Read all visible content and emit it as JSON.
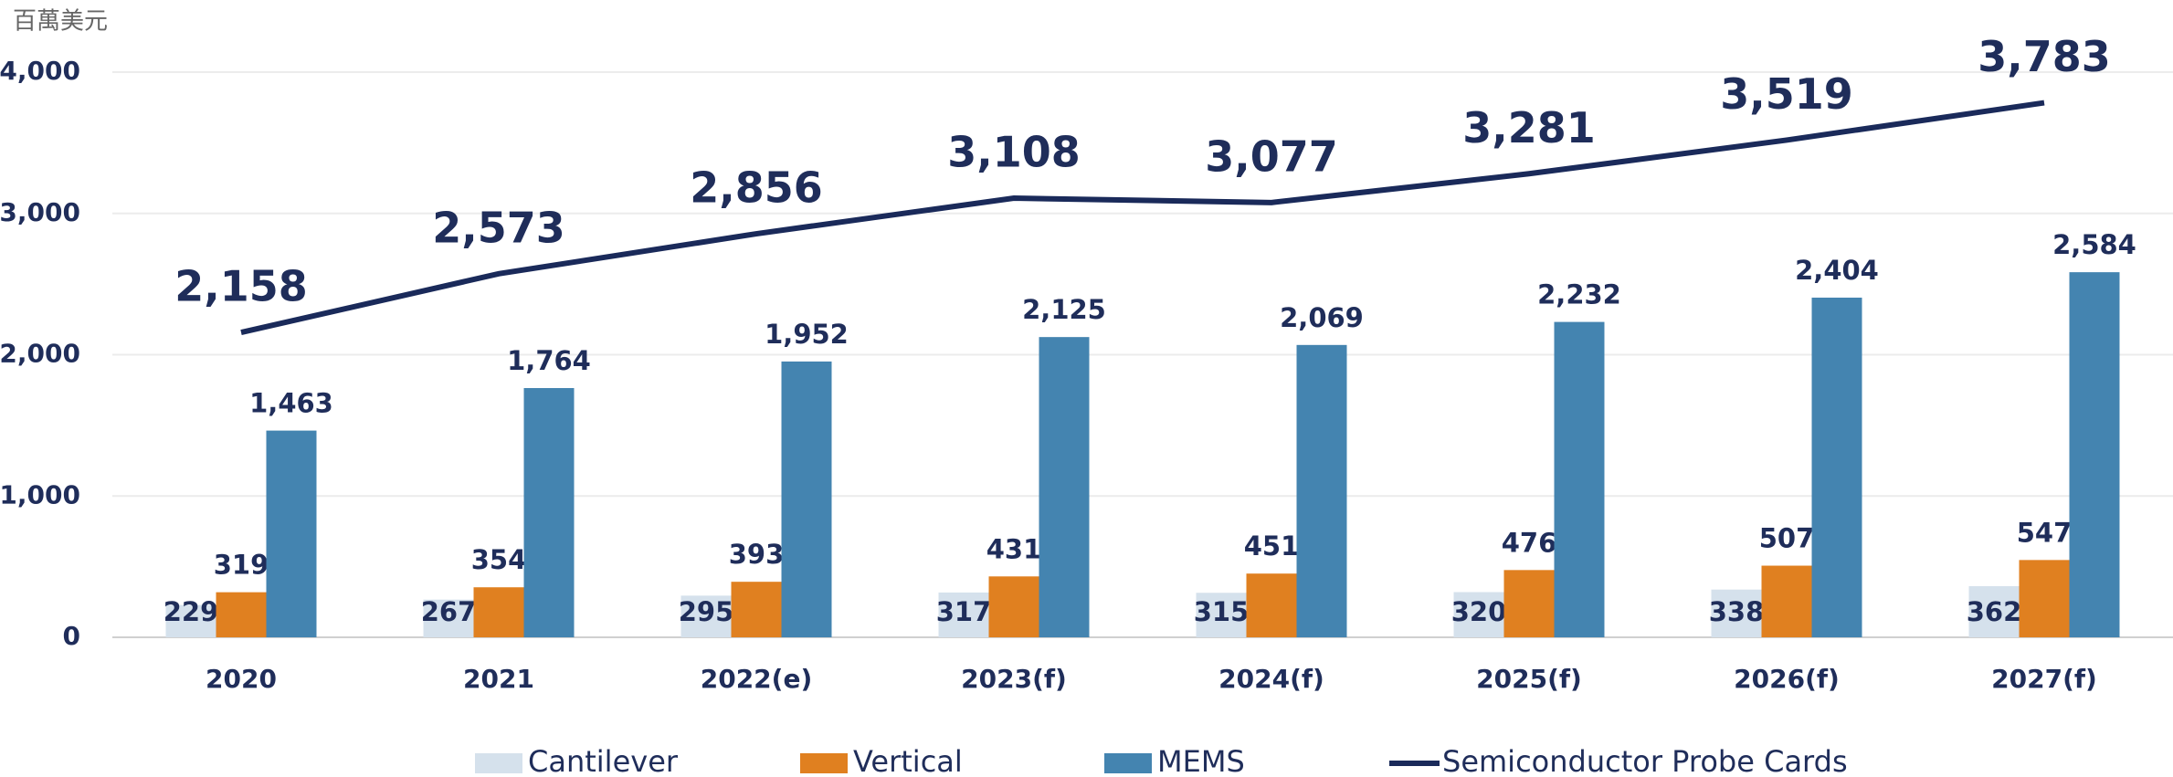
{
  "chart_data": {
    "type": "bar",
    "y_label": "百萬美元",
    "categories": [
      "2020",
      "2021",
      "2022(e)",
      "2023(f)",
      "2024(f)",
      "2025(f)",
      "2026(f)",
      "2027(f)"
    ],
    "series": [
      {
        "name": "Cantilever",
        "type": "bar",
        "color": "#d5e1ec",
        "values": [
          229,
          267,
          295,
          317,
          315,
          320,
          338,
          362
        ]
      },
      {
        "name": "Vertical",
        "type": "bar",
        "color": "#e08020",
        "values": [
          319,
          354,
          393,
          431,
          451,
          476,
          507,
          547
        ]
      },
      {
        "name": "MEMS",
        "type": "bar",
        "color": "#4484b0",
        "values": [
          1463,
          1764,
          1952,
          2125,
          2069,
          2232,
          2404,
          2584
        ],
        "value_labels": [
          "1,463",
          "1,764",
          "1,952",
          "2,125",
          "2,069",
          "2,232",
          "2,404",
          "2,584"
        ]
      },
      {
        "name": "Semiconductor Probe Cards",
        "type": "line",
        "color": "#1a2a5a",
        "values": [
          2158,
          2573,
          2856,
          3108,
          3077,
          3281,
          3519,
          3783
        ],
        "value_labels": [
          "2,158",
          "2,573",
          "2,856",
          "3,108",
          "3,077",
          "3,281",
          "3,519",
          "3,783"
        ]
      }
    ],
    "ylim": [
      0,
      4000
    ],
    "yticks": [
      0,
      {
        "value": 1000,
        "label": "1,000"
      },
      {
        "value": 2000,
        "label": "2,000"
      },
      {
        "value": 3000,
        "label": "3,000"
      },
      {
        "value": 4000,
        "label": "4,000"
      }
    ],
    "grid": true,
    "legend": "bottom"
  }
}
